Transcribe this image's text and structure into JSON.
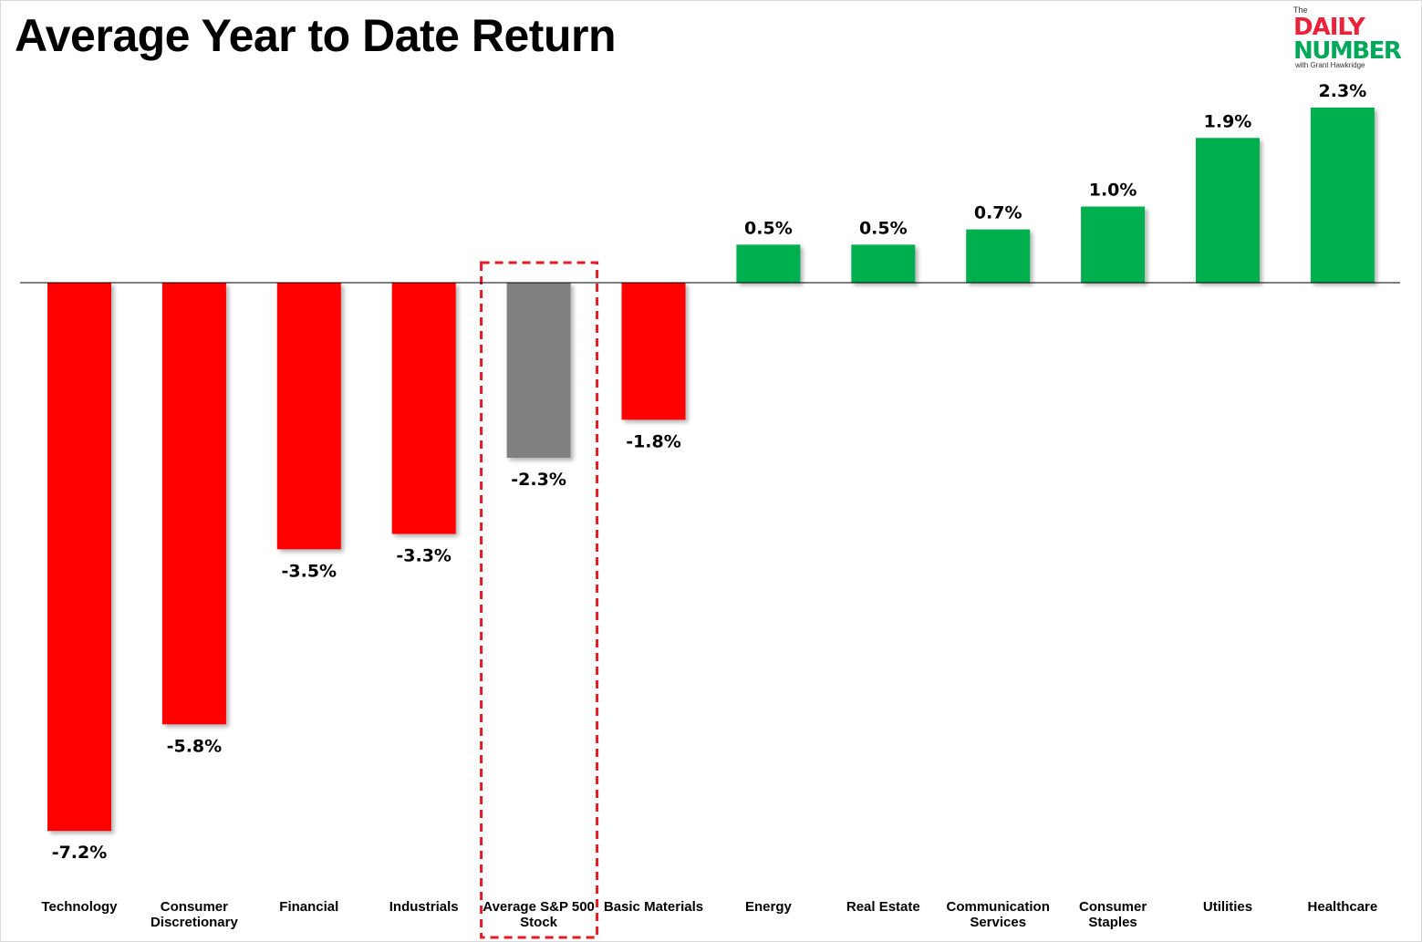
{
  "title": "Average Year to Date Return",
  "logo": {
    "the": "The",
    "daily": "DAILY",
    "number": "NUMBER",
    "byline": "with Grant Hawkridge",
    "red": "#e8233a",
    "green": "#00a859"
  },
  "colors": {
    "negative": "#ff0000",
    "positive": "#00b050",
    "average": "#808080",
    "highlight_box": "#e31b23"
  },
  "chart_data": {
    "type": "bar",
    "title": "Average Year to Date Return",
    "xlabel": "",
    "ylabel": "",
    "ylim": [
      -7.8,
      2.5
    ],
    "grid": false,
    "legend": "none",
    "value_format": "{v}%",
    "highlighted_category": "Average S&P 500 Stock",
    "categories": [
      [
        "Technology"
      ],
      [
        "Consumer",
        "Discretionary"
      ],
      [
        "Financial"
      ],
      [
        "Industrials"
      ],
      [
        "Average S&P 500",
        "Stock"
      ],
      [
        "Basic Materials"
      ],
      [
        "Energy"
      ],
      [
        "Real Estate"
      ],
      [
        "Communication",
        "Services"
      ],
      [
        "Consumer",
        "Staples"
      ],
      [
        "Utilities"
      ],
      [
        "Healthcare"
      ]
    ],
    "values": [
      -7.2,
      -5.8,
      -3.5,
      -3.3,
      -2.3,
      -1.8,
      0.5,
      0.5,
      0.7,
      1.0,
      1.9,
      2.3
    ],
    "value_labels": [
      "-7.2%",
      "-5.8%",
      "-3.5%",
      "-3.3%",
      "-2.3%",
      "-1.8%",
      "0.5%",
      "0.5%",
      "0.7%",
      "1.0%",
      "1.9%",
      "2.3%"
    ]
  }
}
